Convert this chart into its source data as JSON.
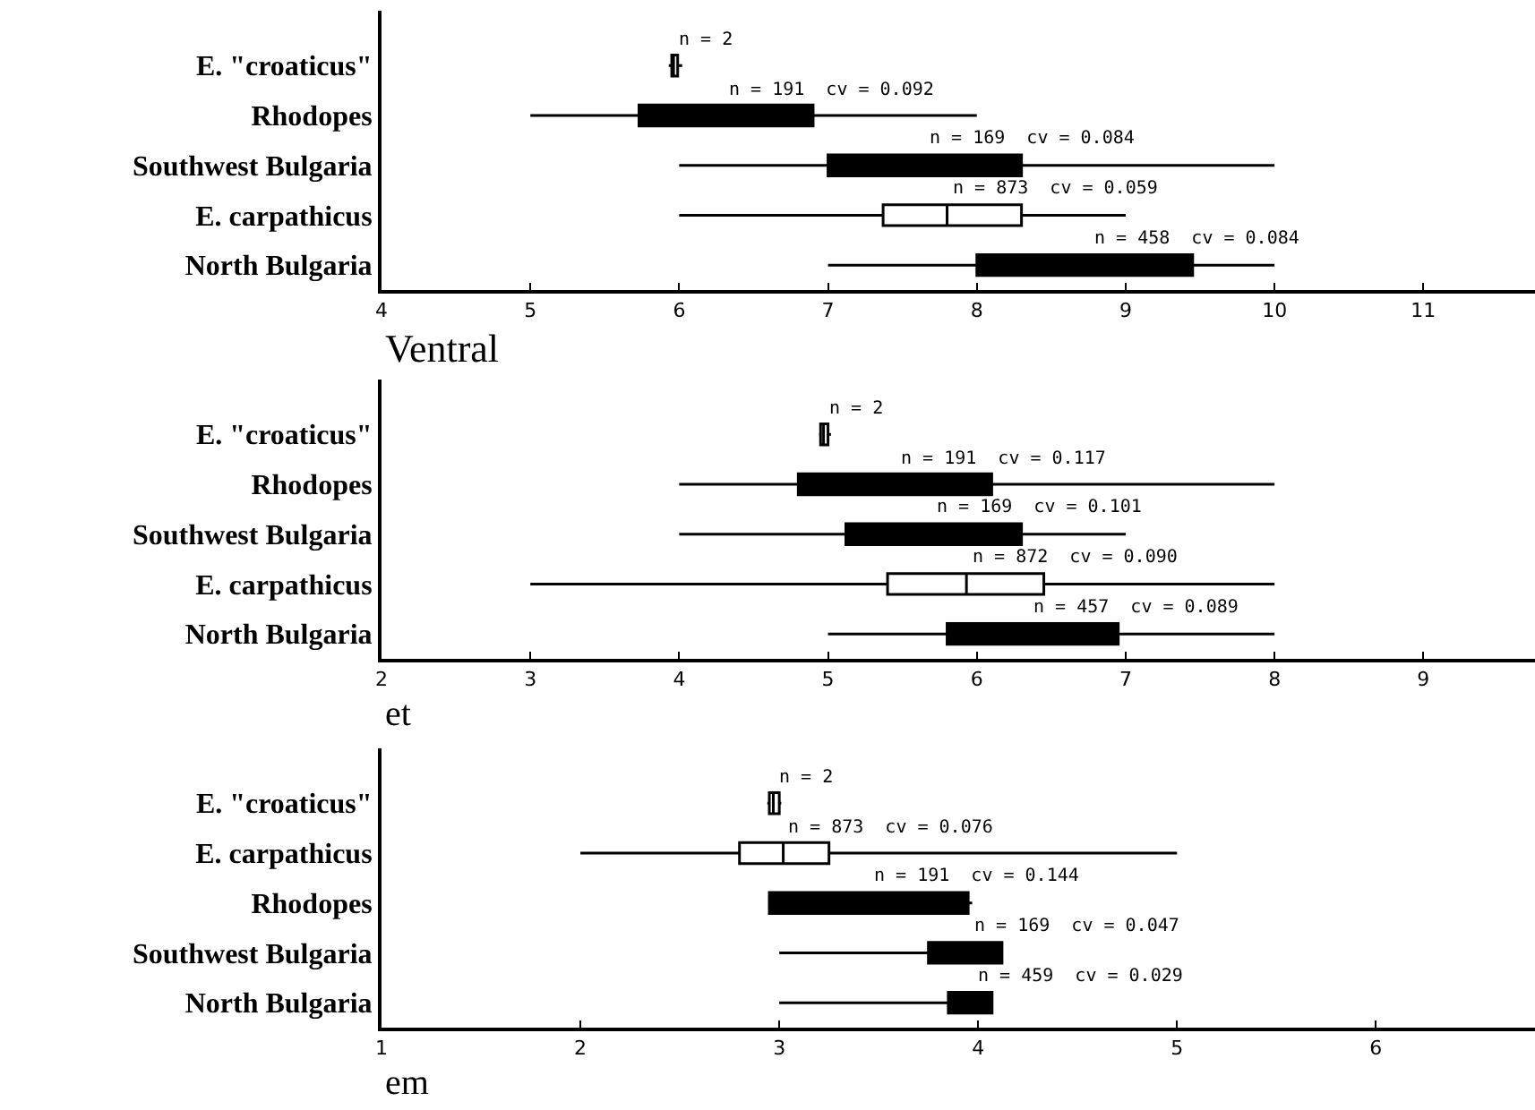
{
  "chart_data": [
    {
      "type": "box",
      "orientation": "horizontal",
      "xlabel": "Ventral",
      "categories": [
        "E. \"croaticus\"",
        "Rhodopes",
        "Southwest Bulgaria",
        "E. carpathicus",
        "North Bulgaria"
      ],
      "xlim": [
        4,
        11.75
      ],
      "xticks": [
        4,
        5,
        6,
        7,
        8,
        9,
        10,
        11
      ],
      "boxes": [
        {
          "low": 5.93,
          "q1": 5.95,
          "median": 5.96,
          "q3": 5.99,
          "high": 6.02
        },
        {
          "low": 5.0,
          "q1": 5.73,
          "median": 6.3,
          "q3": 6.9,
          "high": 8.0
        },
        {
          "low": 6.0,
          "q1": 7.0,
          "median": 7.65,
          "q3": 8.3,
          "high": 10.0
        },
        {
          "low": 6.0,
          "q1": 7.37,
          "median": 7.8,
          "q3": 8.3,
          "high": 9.0
        },
        {
          "low": 7.0,
          "q1": 8.0,
          "median": 8.75,
          "q3": 9.45,
          "high": 10.0
        }
      ],
      "colors": [
        "#ffffff",
        "#000000",
        "#000000",
        "#ffffff",
        "#000000"
      ],
      "annotations": [
        {
          "text": "n = 2",
          "x": 5.96,
          "y": "E. \"croaticus\""
        },
        {
          "text": "n = 191  cv = 0.092",
          "x": 6.3,
          "y": "Rhodopes"
        },
        {
          "text": "n = 169  cv = 0.084",
          "x": 7.65,
          "y": "Southwest Bulgaria"
        },
        {
          "text": "n = 873  cv = 0.059",
          "x": 7.8,
          "y": "E. carpathicus"
        },
        {
          "text": "n = 458  cv = 0.084",
          "x": 8.75,
          "y": "North Bulgaria"
        }
      ]
    },
    {
      "type": "box",
      "orientation": "horizontal",
      "xlabel": "et",
      "categories": [
        "E. \"croaticus\"",
        "Rhodopes",
        "Southwest Bulgaria",
        "E. carpathicus",
        "North Bulgaria"
      ],
      "xlim": [
        2,
        9.75
      ],
      "xticks": [
        2,
        3,
        4,
        5,
        6,
        7,
        8,
        9
      ],
      "boxes": [
        {
          "low": 4.94,
          "q1": 4.95,
          "median": 4.97,
          "q3": 5.0,
          "high": 5.02
        },
        {
          "low": 4.0,
          "q1": 4.8,
          "median": 5.45,
          "q3": 6.1,
          "high": 8.0
        },
        {
          "low": 4.0,
          "q1": 5.12,
          "median": 5.7,
          "q3": 6.3,
          "high": 7.0
        },
        {
          "low": 3.0,
          "q1": 5.4,
          "median": 5.93,
          "q3": 6.45,
          "high": 8.0
        },
        {
          "low": 5.0,
          "q1": 5.8,
          "median": 6.35,
          "q3": 6.95,
          "high": 8.0
        }
      ],
      "colors": [
        "#ffffff",
        "#000000",
        "#000000",
        "#ffffff",
        "#000000"
      ],
      "annotations": [
        {
          "text": "n = 2",
          "x": 4.97,
          "y": "E. \"croaticus\""
        },
        {
          "text": "n = 191  cv = 0.117",
          "x": 5.45,
          "y": "Rhodopes"
        },
        {
          "text": "n = 169  cv = 0.101",
          "x": 5.7,
          "y": "Southwest Bulgaria"
        },
        {
          "text": "n = 872  cv = 0.090",
          "x": 5.93,
          "y": "E. carpathicus"
        },
        {
          "text": "n = 457  cv = 0.089",
          "x": 6.35,
          "y": "North Bulgaria"
        }
      ]
    },
    {
      "type": "box",
      "orientation": "horizontal",
      "xlabel": "em",
      "categories": [
        "E. \"croaticus\"",
        "E. carpathicus",
        "Rhodopes",
        "Southwest Bulgaria",
        "North Bulgaria"
      ],
      "xlim": [
        1,
        6.8
      ],
      "xticks": [
        1,
        2,
        3,
        4,
        5,
        6
      ],
      "boxes": [
        {
          "low": 2.94,
          "q1": 2.95,
          "median": 2.97,
          "q3": 3.0,
          "high": 3.01
        },
        {
          "low": 2.0,
          "q1": 2.8,
          "median": 3.02,
          "q3": 3.25,
          "high": 5.0
        },
        {
          "low": 2.95,
          "q1": 2.95,
          "median": 3.45,
          "q3": 3.95,
          "high": 3.97
        },
        {
          "low": 3.0,
          "q1": 3.75,
          "median": 3.95,
          "q3": 4.12,
          "high": 4.12
        },
        {
          "low": 3.0,
          "q1": 3.85,
          "median": 3.97,
          "q3": 4.07,
          "high": 4.07
        }
      ],
      "colors": [
        "#ffffff",
        "#ffffff",
        "#000000",
        "#000000",
        "#000000"
      ],
      "annotations": [
        {
          "text": "n = 2",
          "x": 2.97,
          "y": "E. \"croaticus\""
        },
        {
          "text": "n = 873  cv = 0.076",
          "x": 3.02,
          "y": "E. carpathicus"
        },
        {
          "text": "n = 191  cv = 0.144",
          "x": 3.45,
          "y": "Rhodopes"
        },
        {
          "text": "n = 169  cv = 0.047",
          "x": 3.95,
          "y": "Southwest Bulgaria"
        },
        {
          "text": "n = 459  cv = 0.029",
          "x": 3.97,
          "y": "North Bulgaria"
        }
      ]
    }
  ]
}
